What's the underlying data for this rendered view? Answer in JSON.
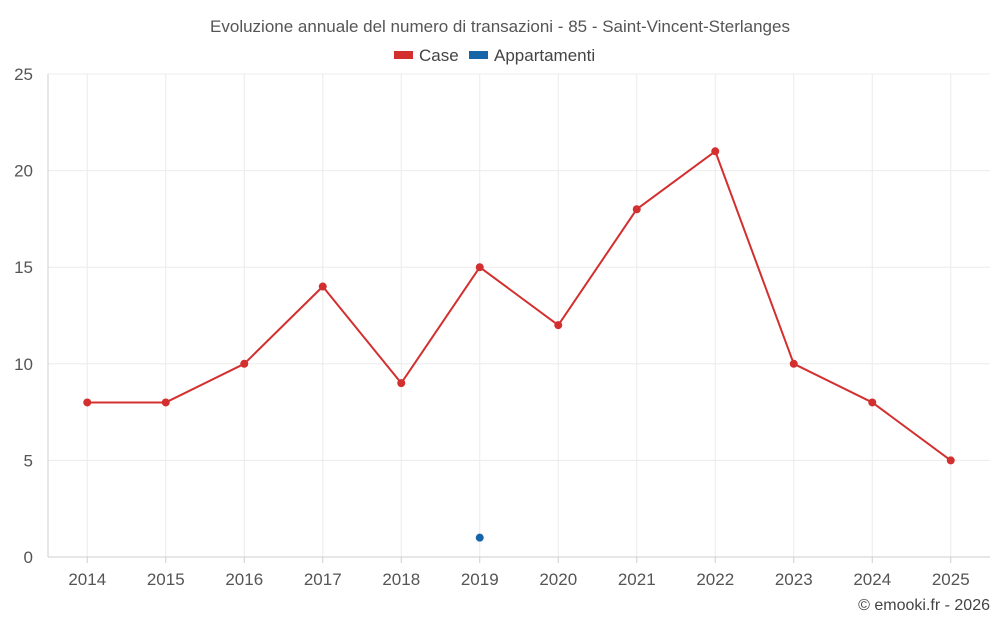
{
  "chart_data": {
    "type": "line",
    "title": "Evoluzione annuale del numero di transazioni - 85 - Saint-Vincent-Sterlanges",
    "categories": [
      "2014",
      "2015",
      "2016",
      "2017",
      "2018",
      "2019",
      "2020",
      "2021",
      "2022",
      "2023",
      "2024",
      "2025"
    ],
    "series": [
      {
        "name": "Case",
        "color": "#d32f2f",
        "values": [
          8,
          8,
          10,
          14,
          9,
          15,
          12,
          18,
          21,
          10,
          8,
          5
        ]
      },
      {
        "name": "Appartamenti",
        "color": "#1565a8",
        "values": [
          null,
          null,
          null,
          null,
          null,
          1,
          null,
          null,
          null,
          null,
          null,
          null
        ]
      }
    ],
    "ylim": [
      0,
      25
    ],
    "yticks": [
      0,
      5,
      10,
      15,
      20,
      25
    ],
    "grid": true,
    "legend_position": "top-center",
    "xlabel": "",
    "ylabel": ""
  },
  "credit": "© emooki.fr - 2026"
}
